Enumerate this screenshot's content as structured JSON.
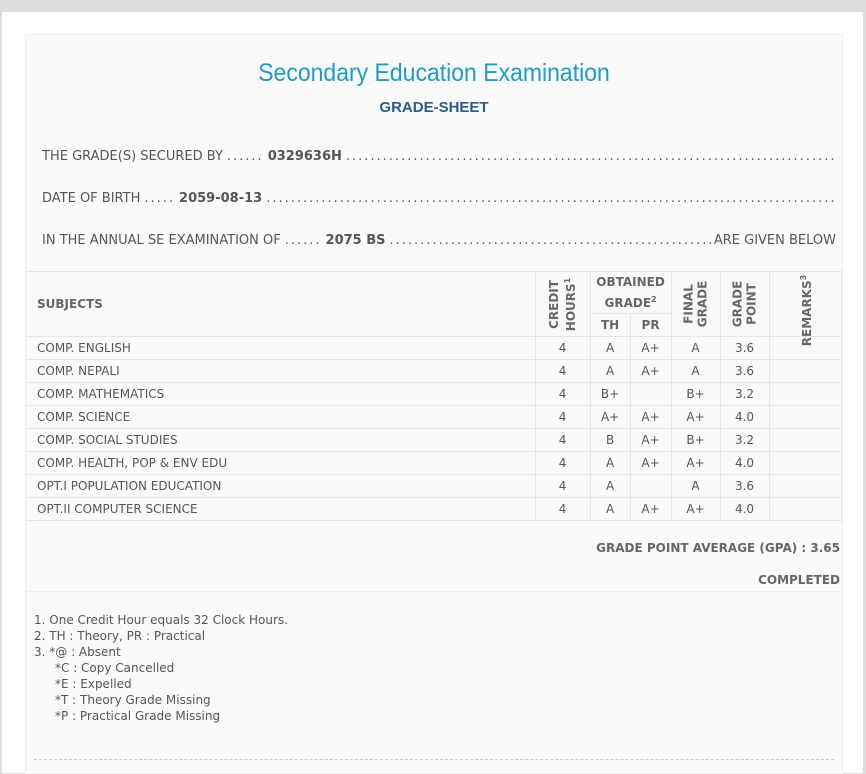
{
  "title": "Secondary Education Examination",
  "subtitle": "GRADE-SHEET",
  "info": {
    "secured_by_label": "THE GRADE(S) SECURED BY",
    "symbol_no": "0329636H",
    "dob_label": "DATE OF BIRTH",
    "dob": "2059-08-13",
    "exam_label": "IN THE ANNUAL SE EXAMINATION OF",
    "year": "2075 BS",
    "given_below": "ARE GIVEN BELOW"
  },
  "table": {
    "headers": {
      "subjects": "SUBJECTS",
      "credit": "CREDIT",
      "hours": "HOURS",
      "sup1": "1",
      "obtained": "OBTAINED",
      "grade": "GRADE",
      "sup2": "2",
      "th": "TH",
      "pr": "PR",
      "final1": "FINAL",
      "final2": "GRADE",
      "gp1": "GRADE",
      "gp2": "POINT",
      "remarks": "REMARKS",
      "sup3": "3"
    },
    "rows": [
      [
        "COMP. ENGLISH",
        "4",
        "A",
        "A+",
        "A",
        "3.6",
        ""
      ],
      [
        "COMP. NEPALI",
        "4",
        "A",
        "A+",
        "A",
        "3.6",
        ""
      ],
      [
        "COMP. MATHEMATICS",
        "4",
        "B+",
        "",
        "B+",
        "3.2",
        ""
      ],
      [
        "COMP. SCIENCE",
        "4",
        "A+",
        "A+",
        "A+",
        "4.0",
        ""
      ],
      [
        "COMP. SOCIAL STUDIES",
        "4",
        "B",
        "A+",
        "B+",
        "3.2",
        ""
      ],
      [
        "COMP. HEALTH, POP & ENV EDU",
        "4",
        "A",
        "A+",
        "A+",
        "4.0",
        ""
      ],
      [
        "OPT.I POPULATION EDUCATION",
        "4",
        "A",
        "",
        "A",
        "3.6",
        ""
      ],
      [
        "OPT.II COMPUTER SCIENCE",
        "4",
        "A",
        "A+",
        "A+",
        "4.0",
        ""
      ]
    ]
  },
  "gpa": "GRADE POINT AVERAGE (GPA) : 3.65",
  "status": "COMPLETED",
  "notes": [
    "1. One Credit Hour equals 32 Clock Hours.",
    "2. TH : Theory, PR : Practical",
    "3. *@ : Absent",
    "*C : Copy Cancelled",
    "*E : Expelled",
    "*T : Theory Grade Missing",
    "*P : Practical Grade Missing"
  ]
}
